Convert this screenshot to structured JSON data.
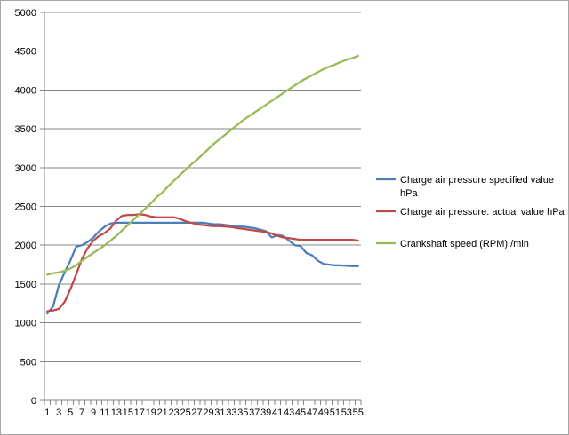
{
  "chart_data": {
    "type": "line",
    "title": "",
    "xlabel": "",
    "ylabel": "",
    "ylim": [
      0,
      5000
    ],
    "yticks": [
      0,
      500,
      1000,
      1500,
      2000,
      2500,
      3000,
      3500,
      4000,
      4500,
      5000
    ],
    "grid": "horizontal",
    "legend_position": "right",
    "x": [
      1,
      2,
      3,
      4,
      5,
      6,
      7,
      8,
      9,
      10,
      11,
      12,
      13,
      14,
      15,
      16,
      17,
      18,
      19,
      20,
      21,
      22,
      23,
      24,
      25,
      26,
      27,
      28,
      29,
      30,
      31,
      32,
      33,
      34,
      35,
      36,
      37,
      38,
      39,
      40,
      41,
      42,
      43,
      44,
      45,
      46,
      47,
      48,
      49,
      50,
      51,
      52,
      53,
      54,
      55
    ],
    "xtick_labels": [
      "1",
      "3",
      "5",
      "7",
      "9",
      "11",
      "13",
      "15",
      "17",
      "19",
      "21",
      "23",
      "25",
      "27",
      "29",
      "31",
      "33",
      "35",
      "37",
      "39",
      "41",
      "43",
      "45",
      "47",
      "49",
      "51",
      "53",
      "55"
    ],
    "series": [
      {
        "name": "Charge air pressure specified value hPa",
        "legend_lines": [
          "Charge air pressure specified value",
          "hPa"
        ],
        "color": "#4a7ebb",
        "values": [
          1120,
          1210,
          1480,
          1650,
          1800,
          1980,
          2000,
          2040,
          2100,
          2180,
          2240,
          2280,
          2290,
          2290,
          2290,
          2290,
          2290,
          2290,
          2290,
          2290,
          2290,
          2290,
          2290,
          2290,
          2290,
          2290,
          2290,
          2290,
          2280,
          2270,
          2270,
          2260,
          2250,
          2240,
          2240,
          2230,
          2220,
          2200,
          2180,
          2100,
          2130,
          2120,
          2060,
          2000,
          1990,
          1900,
          1870,
          1800,
          1760,
          1750,
          1740,
          1740,
          1735,
          1730,
          1730
        ]
      },
      {
        "name": "Charge air pressure:  actual value  hPa",
        "legend_lines": [
          "Charge air pressure:  actual value  hPa"
        ],
        "color": "#be4b48",
        "values": [
          1150,
          1160,
          1180,
          1270,
          1430,
          1620,
          1820,
          1960,
          2060,
          2120,
          2160,
          2220,
          2320,
          2380,
          2390,
          2390,
          2400,
          2390,
          2370,
          2360,
          2360,
          2360,
          2360,
          2340,
          2310,
          2290,
          2270,
          2260,
          2250,
          2245,
          2245,
          2240,
          2235,
          2220,
          2210,
          2200,
          2190,
          2180,
          2170,
          2150,
          2120,
          2100,
          2090,
          2080,
          2070,
          2070,
          2070,
          2070,
          2070,
          2070,
          2070,
          2070,
          2070,
          2070,
          2060
        ]
      },
      {
        "name": "Crankshaft speed (RPM)  /min",
        "legend_lines": [
          "Crankshaft speed (RPM)  /min"
        ],
        "color": "#98b954",
        "values": [
          1620,
          1640,
          1650,
          1670,
          1700,
          1740,
          1800,
          1850,
          1900,
          1950,
          2000,
          2060,
          2120,
          2190,
          2260,
          2330,
          2400,
          2470,
          2540,
          2620,
          2680,
          2760,
          2830,
          2900,
          2970,
          3040,
          3100,
          3170,
          3240,
          3310,
          3370,
          3430,
          3490,
          3550,
          3610,
          3660,
          3710,
          3760,
          3810,
          3860,
          3910,
          3960,
          4010,
          4060,
          4110,
          4150,
          4190,
          4230,
          4270,
          4300,
          4330,
          4360,
          4390,
          4410,
          4440
        ]
      }
    ]
  }
}
